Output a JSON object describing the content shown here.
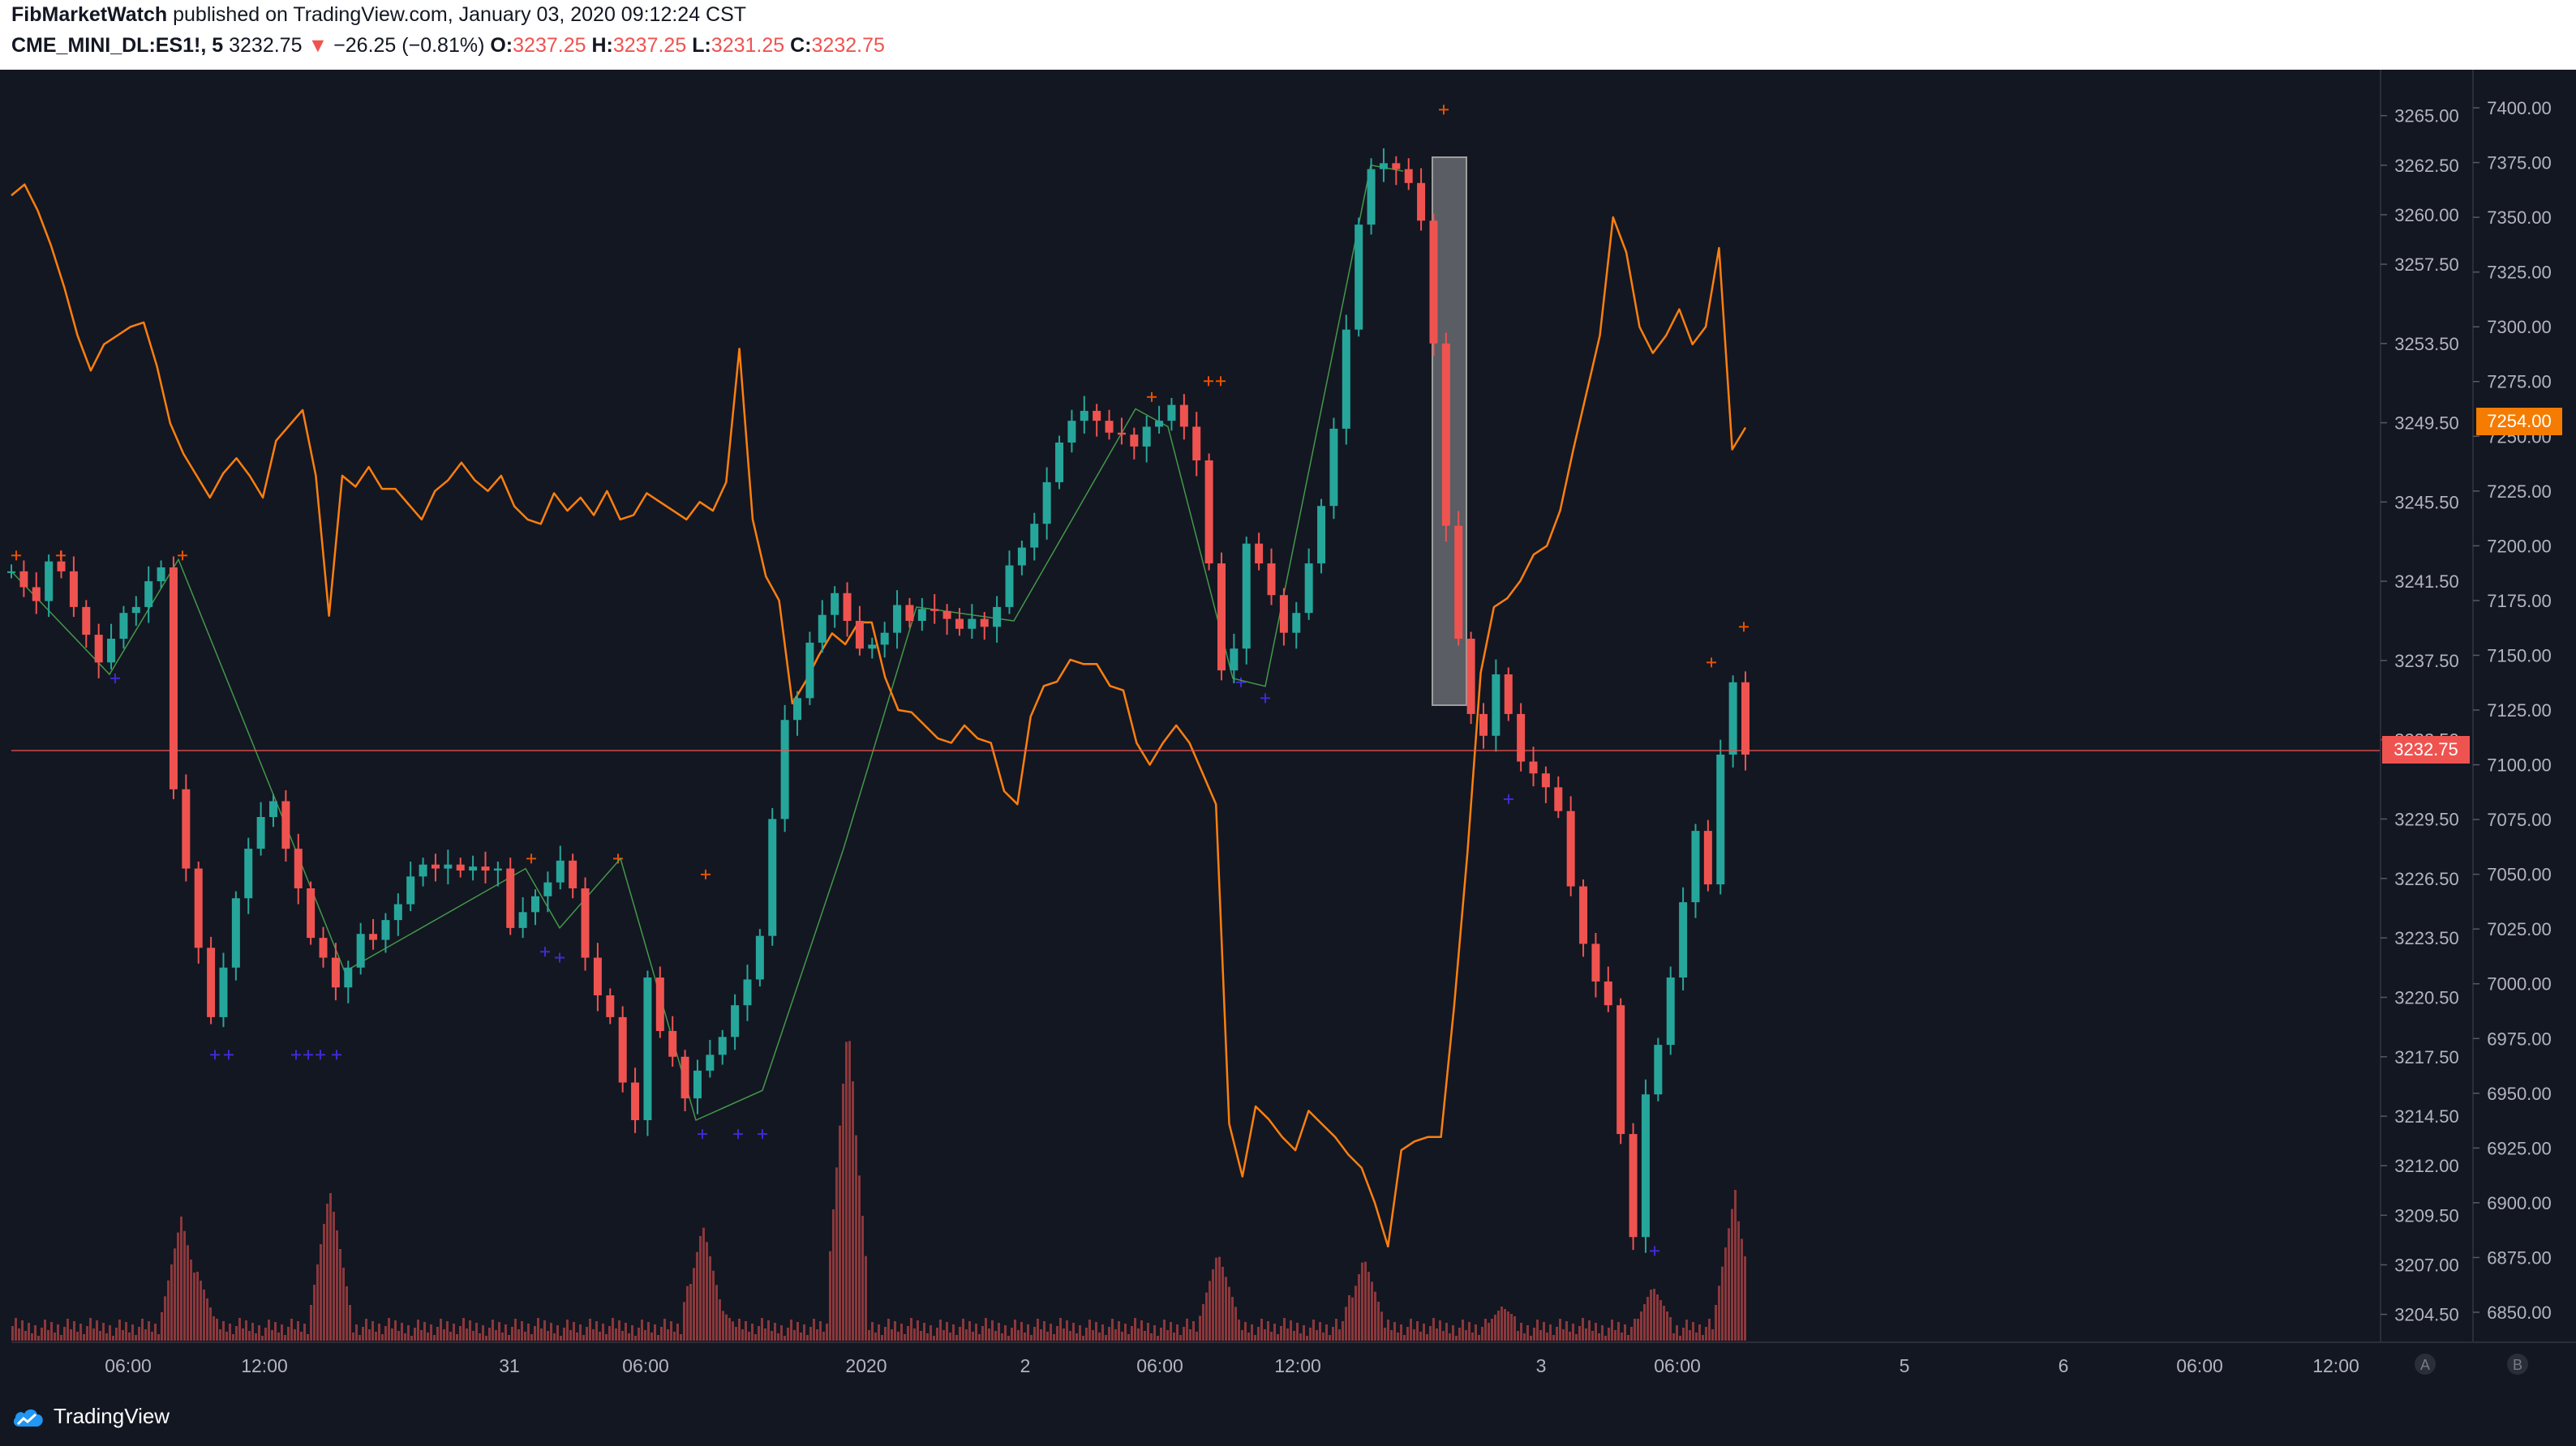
{
  "header": {
    "author": "FibMarketWatch",
    "published_text": "published on TradingView.com, January 03, 2020 09:12:24 CST",
    "symbol": "CME_MINI_DL:ES1!, 5",
    "last_price": "3232.75",
    "change_arrow": "▼",
    "change": "−26.25 (−0.81%)",
    "open_label": "O:",
    "open": "3237.25",
    "high_label": "H:",
    "high": "3237.25",
    "low_label": "L:",
    "low": "3231.25",
    "close_label": "C:",
    "close": "3232.75"
  },
  "footer": {
    "brand": "TradingView"
  },
  "axis_buttons": {
    "a": "A",
    "b": "B"
  },
  "colors": {
    "background": "#131722",
    "orange_series": "#ff7f0e",
    "up_candle": "#26a69a",
    "down_candle": "#ef5350",
    "price_line": "#ef5350",
    "orange_label_bg": "#f57c00",
    "marker_up": "#e65100",
    "marker_down": "#3f2bd1",
    "zigzag": "#4caf50"
  },
  "chart_data": {
    "type": "line",
    "title": "",
    "x_ticks": [
      "06:00",
      "12:00",
      "31",
      "06:00",
      "2020",
      "2",
      "06:00",
      "12:00",
      "3",
      "06:00",
      "5",
      "6",
      "06:00",
      "12:00"
    ],
    "left_axis": {
      "ticks": [
        "3265.00",
        "3262.50",
        "3260.00",
        "3257.50",
        "3253.50",
        "3249.50",
        "3245.50",
        "3241.50",
        "3237.50",
        "3233.50",
        "3229.50",
        "3226.50",
        "3223.50",
        "3220.50",
        "3217.50",
        "3214.50",
        "3212.00",
        "3209.50",
        "3207.00",
        "3204.50"
      ],
      "ylim": [
        3203.5,
        3266.5
      ]
    },
    "right_axis": {
      "ticks": [
        "7400.00",
        "7375.00",
        "7350.00",
        "7325.00",
        "7300.00",
        "7275.00",
        "7250.00",
        "7225.00",
        "7200.00",
        "7175.00",
        "7150.00",
        "7125.00",
        "7100.00",
        "7075.00",
        "7050.00",
        "7025.00",
        "7000.00",
        "6975.00",
        "6950.00",
        "6925.00",
        "6900.00",
        "6875.00",
        "6850.00"
      ],
      "ylim": [
        6840,
        7410
      ]
    },
    "current_price_label": "3232.75",
    "orange_last_label": "7254.00",
    "series": [
      {
        "type": "candlestick",
        "axis": "left",
        "values": [
          3242,
          3241.2,
          3240.5,
          3242.5,
          3242,
          3240.2,
          3238.8,
          3237.4,
          3238.6,
          3239.9,
          3240.2,
          3241.5,
          3242.2,
          3231,
          3227,
          3223,
          3219.5,
          3222,
          3225.5,
          3228,
          3229.6,
          3230.4,
          3228,
          3226,
          3223.5,
          3222.5,
          3221,
          3222,
          3223.7,
          3223.4,
          3224.4,
          3225.2,
          3226.6,
          3227.2,
          3227,
          3227.2,
          3226.9,
          3227.1,
          3226.9,
          3227,
          3224,
          3224.8,
          3225.6,
          3226.3,
          3227.4,
          3226,
          3222.5,
          3220.6,
          3219.5,
          3216.2,
          3214.3,
          3221.5,
          3218.8,
          3217.5,
          3215.4,
          3216.8,
          3217.6,
          3218.5,
          3220.1,
          3221.4,
          3223.6,
          3229.5,
          3234.5,
          3235.6,
          3238.4,
          3239.8,
          3240.9,
          3239.5,
          3238.1,
          3238.3,
          3238.9,
          3240.3,
          3239.5,
          3240.1,
          3240,
          3239.6,
          3239.1,
          3239.6,
          3239.2,
          3240.2,
          3242.3,
          3243.2,
          3244.4,
          3246.5,
          3248.5,
          3249.6,
          3250.1,
          3249.6,
          3249,
          3248.9,
          3248.3,
          3249.3,
          3249.6,
          3250.4,
          3249.3,
          3247.6,
          3242.4,
          3237,
          3238.1,
          3243.4,
          3242.4,
          3240.8,
          3238.9,
          3239.9,
          3242.4,
          3245.3,
          3249.2,
          3254.2,
          3259.5,
          3262.3,
          3262.6,
          3262.3,
          3261.6,
          3259.7,
          3253.5,
          3244.3,
          3238.6,
          3234.8,
          3233.7,
          3236.8,
          3234.8,
          3232.4,
          3231.8,
          3231.1,
          3229.9,
          3226.1,
          3223.2,
          3221.3,
          3220.1,
          3213.6,
          3208.4,
          3215.6,
          3218.1,
          3221.5,
          3225.3,
          3228.9,
          3226.2,
          3232.75,
          3236.4,
          3232.75
        ]
      },
      {
        "type": "line",
        "axis": "right",
        "name": "",
        "values": [
          7360,
          7365,
          7353,
          7337,
          7318,
          7296,
          7280,
          7292,
          7296,
          7300,
          7302,
          7282,
          7256,
          7242,
          7232,
          7222,
          7233,
          7240,
          7232,
          7222,
          7248,
          7255,
          7262,
          7232,
          7168,
          7232,
          7227,
          7236,
          7226,
          7226,
          7219,
          7212,
          7225,
          7230,
          7238,
          7230,
          7225,
          7232,
          7218,
          7212,
          7210,
          7224,
          7216,
          7222,
          7214,
          7225,
          7212,
          7214,
          7224,
          7220,
          7216,
          7212,
          7220,
          7216,
          7229,
          7290,
          7212,
          7186,
          7175,
          7128,
          7138,
          7150,
          7160,
          7155,
          7165,
          7165,
          7140,
          7125,
          7124,
          7118,
          7112,
          7110,
          7118,
          7112,
          7110,
          7088,
          7082,
          7122,
          7136,
          7138,
          7148,
          7146,
          7146,
          7136,
          7134,
          7110,
          7100,
          7110,
          7118,
          7110,
          7096,
          7082,
          6936,
          6912,
          6944,
          6938,
          6930,
          6924,
          6942,
          6936,
          6930,
          6922,
          6916,
          6900,
          6880,
          6924,
          6928,
          6930,
          6930,
          6990,
          7060,
          7142,
          7172,
          7176,
          7184,
          7196,
          7200,
          7216,
          7244,
          7270,
          7296,
          7350,
          7334,
          7300,
          7288,
          7296,
          7308,
          7292,
          7300,
          7336,
          7244,
          7254
        ]
      }
    ],
    "volume_spikes": [
      "12:00",
      "06:00",
      "2020",
      "06:00",
      "12:00",
      "3",
      "06:00"
    ]
  }
}
